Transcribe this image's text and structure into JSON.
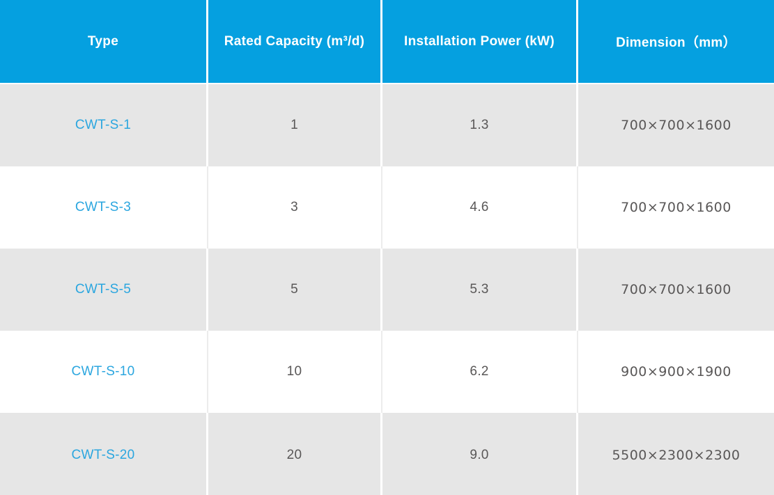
{
  "colors": {
    "header_bg": "#05a0e0",
    "header_text": "#ffffff",
    "row_alt_bg": "#e6e6e6",
    "row_bg": "#ffffff",
    "body_text": "#595757",
    "type_link_text": "#2ba6df"
  },
  "table": {
    "columns": [
      {
        "label": "Type"
      },
      {
        "label": "Rated Capacity (m³/d)"
      },
      {
        "label": "Installation Power (kW)"
      },
      {
        "label": "Dimension（mm）"
      }
    ],
    "rows": [
      {
        "type": "CWT-S-1",
        "capacity": "1",
        "power": "1.3",
        "dimension": "700×700×1600"
      },
      {
        "type": "CWT-S-3",
        "capacity": "3",
        "power": "4.6",
        "dimension": "700×700×1600"
      },
      {
        "type": "CWT-S-5",
        "capacity": "5",
        "power": "5.3",
        "dimension": "700×700×1600"
      },
      {
        "type": "CWT-S-10",
        "capacity": "10",
        "power": "6.2",
        "dimension": "900×900×1900"
      },
      {
        "type": "CWT-S-20",
        "capacity": "20",
        "power": "9.0",
        "dimension": "5500×2300×2300"
      }
    ]
  }
}
